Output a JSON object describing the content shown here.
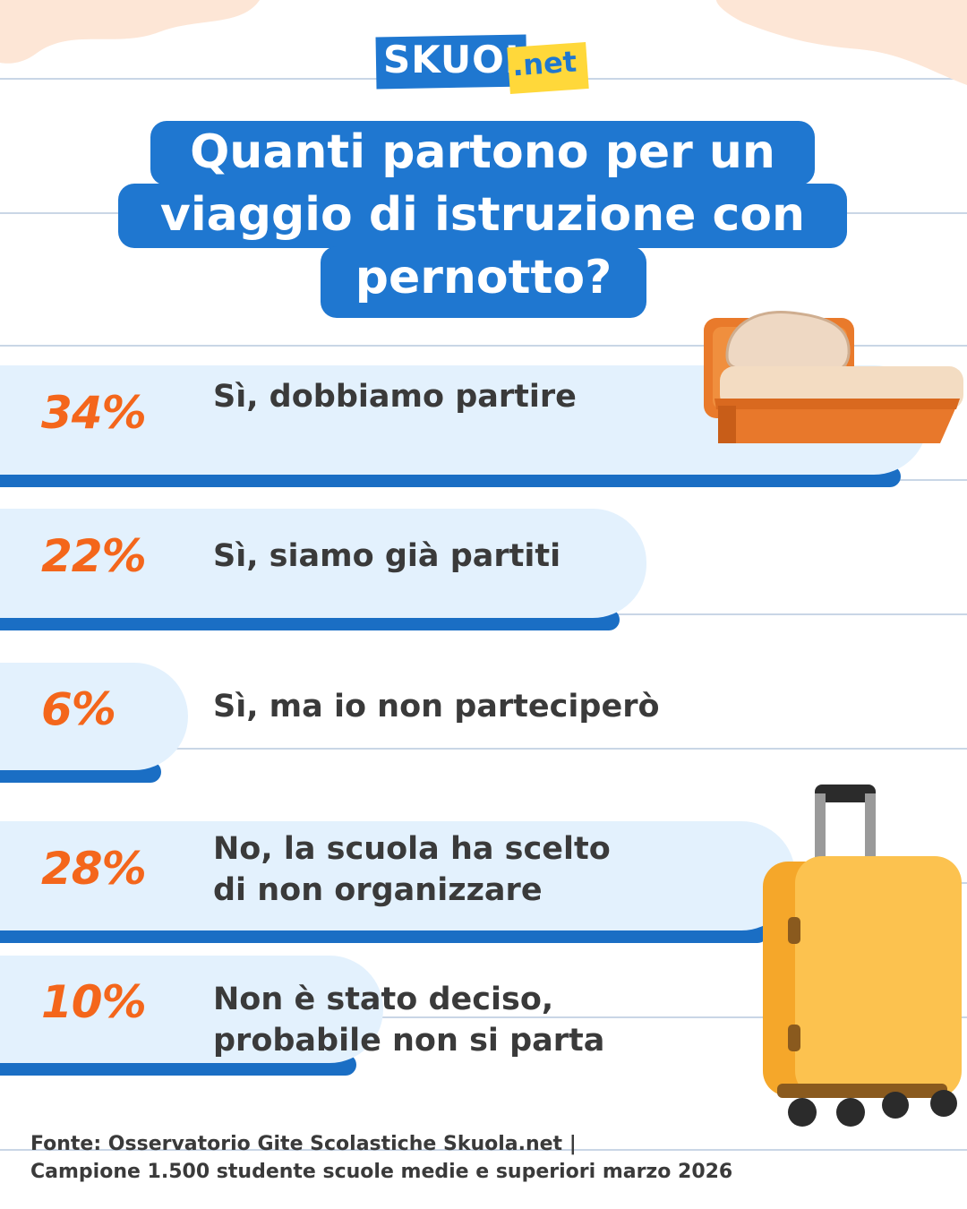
{
  "brand": {
    "logo_main": "SKUOLA",
    "logo_suffix": ".net"
  },
  "title": {
    "line1": "Quanti partono per un",
    "line2": "viaggio di istruzione con",
    "line3": "pernotto?"
  },
  "colors": {
    "accent_blue": "#1f77d0",
    "bar_fill": "#e3f1fd",
    "bar_shadow": "#1a6ec4",
    "percent_orange": "#f4661b",
    "text_dark": "#3a3a3a"
  },
  "chart_data": {
    "type": "bar",
    "orientation": "horizontal",
    "title": "Quanti partono per un viaggio di istruzione con pernotto?",
    "categories": [
      "Sì, dobbiamo partire",
      "Sì, siamo già partiti",
      "Sì, ma io non parteciperò",
      "No, la scuola ha scelto di non organizzare",
      "Non è stato deciso, probabile non si parta"
    ],
    "values": [
      34,
      22,
      6,
      28,
      10
    ],
    "unit": "%",
    "labels": [
      "34%",
      "22%",
      "6%",
      "28%",
      "10%"
    ],
    "answer_lines": [
      "Sì, dobbiamo partire",
      "Sì, siamo già partiti",
      "Sì, ma io non parteciperò",
      "No, la scuola ha scelto\ndi non organizzare",
      "Non è stato deciso,\nprobabile non si parta"
    ]
  },
  "icons": [
    "bed-illustration",
    "suitcase-illustration"
  ],
  "source": {
    "line1": "Fonte:  Osservatorio Gite Scolastiche Skuola.net |",
    "line2": "Campione 1.500 studente scuole medie e superiori marzo 2026"
  }
}
